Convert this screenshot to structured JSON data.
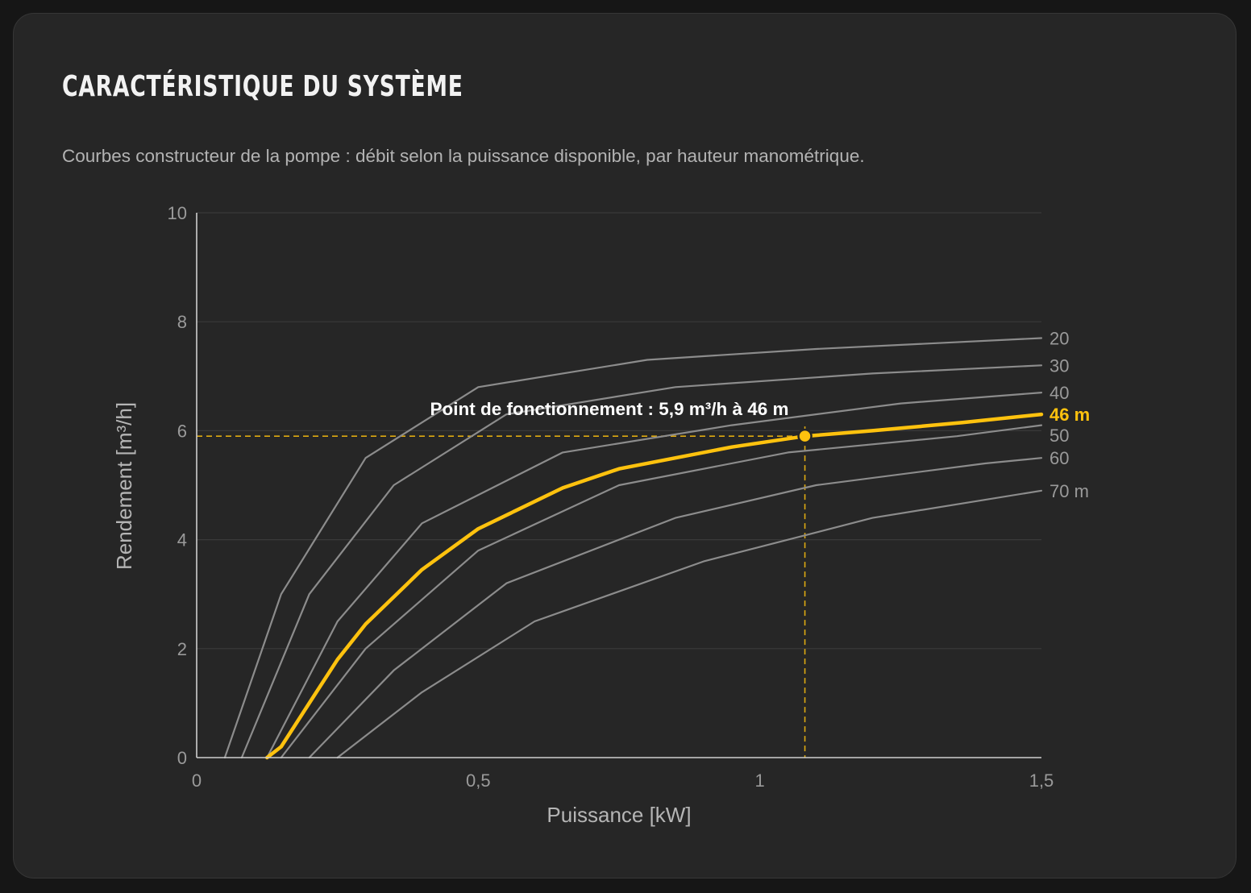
{
  "card": {
    "title": "CARACTÉRISTIQUE DU SYSTÈME",
    "subtitle": "Courbes constructeur de la pompe : débit selon la puissance disponible, par hauteur manométrique."
  },
  "colors": {
    "background": "#161616",
    "card": "#262626",
    "grid": "#3a3a3a",
    "axis": "#cfcfcf",
    "curve": "#8c8c8c",
    "highlight": "#ffc20e",
    "tick_text": "#9a9a9a",
    "label_text": "#b5b5b5",
    "annotation_text": "#ffffff"
  },
  "chart_data": {
    "type": "line",
    "title": "",
    "xlabel": "Puissance [kW]",
    "ylabel": "Rendement [m³/h]",
    "xlim": [
      0,
      1.5
    ],
    "ylim": [
      0,
      10
    ],
    "x_ticks": [
      0,
      0.5,
      1,
      1.5
    ],
    "x_tick_labels": [
      "0",
      "0,5",
      "1",
      "1,5"
    ],
    "y_ticks": [
      0,
      2,
      4,
      6,
      8,
      10
    ],
    "y_tick_labels": [
      "0",
      "2",
      "4",
      "6",
      "8",
      "10"
    ],
    "grid": "horizontal",
    "series": [
      {
        "name": "20",
        "highlight": false,
        "x": [
          0.05,
          0.15,
          0.3,
          0.5,
          0.8,
          1.1,
          1.5
        ],
        "y": [
          0,
          3.0,
          5.5,
          6.8,
          7.3,
          7.5,
          7.7
        ]
      },
      {
        "name": "30",
        "highlight": false,
        "x": [
          0.08,
          0.2,
          0.35,
          0.55,
          0.85,
          1.2,
          1.5
        ],
        "y": [
          0,
          3.0,
          5.0,
          6.3,
          6.8,
          7.05,
          7.2
        ]
      },
      {
        "name": "40",
        "highlight": false,
        "x": [
          0.125,
          0.25,
          0.4,
          0.65,
          0.95,
          1.25,
          1.5
        ],
        "y": [
          0,
          2.5,
          4.3,
          5.6,
          6.1,
          6.5,
          6.7
        ]
      },
      {
        "name": "46 m",
        "highlight": true,
        "x": [
          0.125,
          0.15,
          0.2,
          0.25,
          0.3,
          0.4,
          0.5,
          0.65,
          0.75,
          0.85,
          0.95,
          1.08,
          1.2,
          1.36,
          1.5
        ],
        "y": [
          0,
          0.2,
          1.0,
          1.8,
          2.45,
          3.45,
          4.2,
          4.95,
          5.3,
          5.5,
          5.7,
          5.9,
          6.0,
          6.15,
          6.3
        ]
      },
      {
        "name": "50",
        "highlight": false,
        "x": [
          0.15,
          0.3,
          0.5,
          0.75,
          1.05,
          1.35,
          1.5
        ],
        "y": [
          0,
          2.0,
          3.8,
          5.0,
          5.6,
          5.9,
          6.1
        ]
      },
      {
        "name": "60",
        "highlight": false,
        "x": [
          0.2,
          0.35,
          0.55,
          0.85,
          1.1,
          1.4,
          1.5
        ],
        "y": [
          0,
          1.6,
          3.2,
          4.4,
          5.0,
          5.4,
          5.5
        ]
      },
      {
        "name": "70 m",
        "highlight": false,
        "x": [
          0.25,
          0.4,
          0.6,
          0.9,
          1.2,
          1.5
        ],
        "y": [
          0,
          1.2,
          2.5,
          3.6,
          4.4,
          4.9
        ]
      }
    ],
    "operating_point": {
      "x": 1.08,
      "y": 5.9,
      "label": "Point de fonctionnement : 5,9 m³/h à 46 m"
    }
  }
}
